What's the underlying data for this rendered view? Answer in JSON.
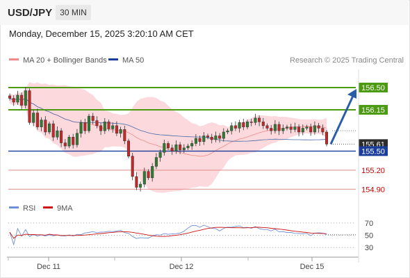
{
  "header": {
    "symbol": "USD/JPY",
    "timeframe": "30 MIN",
    "datetime": "Monday, December 15, 2025 3:20:10 AM CET"
  },
  "credit": "Research © 2025 Trading Central",
  "colors": {
    "resistance_green": "#4c9a12",
    "support_blue": "#1b3d9c",
    "price_label": "#2d2d2d",
    "level_red": "#cc0000",
    "bollinger_fill": "#fbd9dd",
    "ma20": "#f08a8a",
    "ma50": "#4a6aa8",
    "candle_up": "#2e7d32",
    "candle_down": "#c62828",
    "forecast_arrow": "#2a5da8",
    "rsi": "#6f8fd6",
    "rsi_ma": "#cc1111"
  },
  "chart_data": [
    {
      "type": "candlestick",
      "title": "USD/JPY 30 MIN",
      "ylim": [
        154.75,
        156.74
      ],
      "x_ticks": [
        "Dec 11",
        "Dec 12",
        "Dec 15"
      ],
      "legend": [
        {
          "name": "MA 20 + Bollinger Bands",
          "color": "#f08a8a"
        },
        {
          "name": "MA 50",
          "color": "#1b3d9c"
        }
      ],
      "levels": [
        {
          "label": "156.50",
          "value": 156.5,
          "style": "resistance"
        },
        {
          "label": "156.15",
          "value": 156.15,
          "style": "resistance"
        },
        {
          "label": "155.61",
          "value": 155.61,
          "style": "last_price"
        },
        {
          "label": "155.50",
          "value": 155.5,
          "style": "support"
        },
        {
          "label": "155.20",
          "value": 155.2,
          "style": "level"
        },
        {
          "label": "154.90",
          "value": 154.9,
          "style": "level"
        }
      ],
      "last_price": 155.61,
      "forecast_target": 156.5,
      "closes": [
        156.33,
        156.27,
        156.38,
        156.22,
        156.45,
        155.95,
        156.1,
        155.88,
        155.99,
        155.8,
        155.93,
        155.72,
        155.82,
        155.63,
        155.58,
        155.72,
        155.6,
        155.78,
        155.95,
        155.82,
        156.05,
        155.98,
        155.9,
        155.82,
        155.96,
        155.85,
        155.9,
        155.78,
        155.84,
        155.66,
        155.42,
        155.1,
        154.93,
        154.98,
        155.18,
        155.08,
        155.26,
        155.4,
        155.48,
        155.62,
        155.55,
        155.5,
        155.6,
        155.52,
        155.55,
        155.58,
        155.62,
        155.7,
        155.65,
        155.74,
        155.72,
        155.68,
        155.74,
        155.7,
        155.8,
        155.82,
        155.9,
        155.86,
        155.95,
        155.88,
        155.96,
        155.95,
        156.02,
        155.96,
        155.9,
        155.86,
        155.82,
        155.92,
        155.82,
        155.86,
        155.88,
        155.84,
        155.88,
        155.8,
        155.86,
        155.88,
        155.8,
        155.9,
        155.86,
        155.8,
        155.61
      ]
    },
    {
      "type": "line",
      "title": "RSI",
      "ylim": [
        20,
        80
      ],
      "y_ticks": [
        30,
        50,
        70
      ],
      "legend": [
        {
          "name": "RSI",
          "color": "#6f8fd6"
        },
        {
          "name": "9MA",
          "color": "#cc1111"
        }
      ]
    }
  ]
}
